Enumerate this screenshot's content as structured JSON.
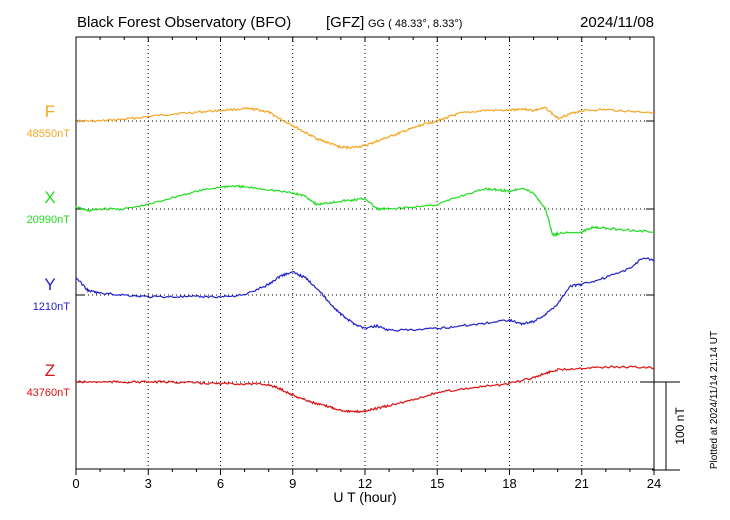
{
  "header": {
    "title": "Black Forest Observatory (BFO)",
    "institute": "[GFZ]",
    "coords": "GG ( 48.33°,   8.33°)",
    "date": "2024/11/08"
  },
  "footer": {
    "plotted": "Plotted at 2024/11/14 21:14 UT"
  },
  "chart_data": {
    "type": "line",
    "title": "Black Forest Observatory (BFO)  [GFZ] GG ( 48.33°, 8.33°)  2024/11/08",
    "xlabel": "U T (hour)",
    "xlim": [
      0,
      24
    ],
    "xticks": [
      "0",
      "3",
      "6",
      "9",
      "12",
      "15",
      "18",
      "21",
      "24"
    ],
    "scale_bar": {
      "label": "100 nT",
      "value_nT": 100
    },
    "series": [
      {
        "name": "F",
        "baseline_label": "48550nT",
        "baseline_nT": 48550,
        "color": "#f5a623",
        "x": [
          0,
          1,
          2,
          3,
          4,
          5,
          6,
          7,
          7.5,
          8,
          8.5,
          9,
          9.5,
          10,
          10.5,
          11,
          11.5,
          12,
          12.5,
          13,
          13.5,
          14,
          14.5,
          15,
          15.5,
          16,
          17,
          18,
          18.5,
          19,
          19.5,
          20,
          20.5,
          21,
          22,
          23,
          24
        ],
        "y": [
          48550,
          48550,
          48552,
          48555,
          48558,
          48560,
          48562,
          48564,
          48563,
          48560,
          48552,
          48545,
          48537,
          48530,
          48525,
          48520,
          48520,
          48522,
          48527,
          48532,
          48537,
          48542,
          48547,
          48550,
          48555,
          48559,
          48562,
          48562,
          48564,
          48562,
          48565,
          48553,
          48558,
          48562,
          48563,
          48561,
          48560
        ]
      },
      {
        "name": "X",
        "baseline_label": "20990nT",
        "baseline_nT": 20990,
        "color": "#22dd22",
        "x": [
          0,
          0.5,
          1,
          2,
          3,
          4,
          5,
          6,
          6.5,
          7,
          8,
          9,
          9.5,
          10,
          10.5,
          11,
          11.5,
          12,
          12.5,
          13,
          14,
          15,
          16,
          17,
          17.5,
          18,
          18.5,
          19,
          19.5,
          19.8,
          20,
          21,
          21.5,
          22,
          23,
          24
        ],
        "y": [
          20992,
          20988,
          20990,
          20990,
          20995,
          21003,
          21010,
          21015,
          21016,
          21015,
          21012,
          21008,
          21005,
          20995,
          20997,
          20999,
          21000,
          21002,
          20990,
          20990,
          20992,
          20995,
          21005,
          21013,
          21012,
          21010,
          21014,
          21008,
          20990,
          20960,
          20962,
          20964,
          20970,
          20968,
          20966,
          20964
        ]
      },
      {
        "name": "Y",
        "baseline_label": "1210nT",
        "baseline_nT": 1210,
        "color": "#2222cc",
        "x": [
          0,
          0.5,
          1,
          2,
          3,
          4,
          5,
          6,
          7,
          8,
          8.5,
          9,
          9.5,
          10,
          10.5,
          11,
          11.5,
          12,
          12.5,
          13,
          14,
          15,
          16,
          17,
          18,
          18.5,
          19,
          19.5,
          20,
          20.5,
          21,
          22,
          23,
          23.5,
          24
        ],
        "y": [
          1230,
          1215,
          1212,
          1210,
          1208,
          1208,
          1208,
          1208,
          1210,
          1222,
          1232,
          1236,
          1230,
          1218,
          1202,
          1188,
          1178,
          1172,
          1175,
          1170,
          1170,
          1172,
          1175,
          1178,
          1182,
          1177,
          1180,
          1188,
          1200,
          1220,
          1222,
          1230,
          1240,
          1252,
          1250
        ]
      },
      {
        "name": "Z",
        "baseline_label": "43760nT",
        "baseline_nT": 43760,
        "color": "#dd1111",
        "x": [
          0,
          1,
          2,
          3,
          4,
          5,
          6,
          7,
          8,
          8.5,
          9,
          9.5,
          10,
          10.5,
          11,
          11.5,
          12,
          12.5,
          13,
          14,
          15,
          16,
          17,
          18,
          19,
          19.5,
          20,
          21,
          22,
          23,
          24
        ],
        "y": [
          43760,
          43760,
          43760,
          43760,
          43760,
          43759,
          43758,
          43758,
          43757,
          43752,
          43745,
          43740,
          43735,
          43732,
          43728,
          43726,
          43727,
          43730,
          43733,
          43740,
          43748,
          43752,
          43755,
          43758,
          43765,
          43770,
          43774,
          43776,
          43777,
          43777,
          43776
        ]
      }
    ]
  }
}
